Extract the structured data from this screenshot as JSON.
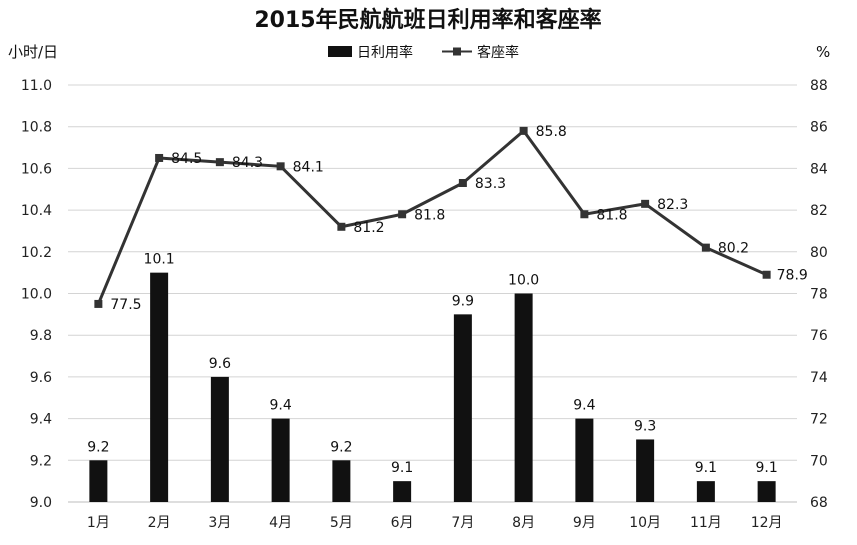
{
  "chart_data": {
    "type": "bar",
    "title": "2015年民航航班日利用率和客座率",
    "categories": [
      "1月",
      "2月",
      "3月",
      "4月",
      "5月",
      "6月",
      "7月",
      "8月",
      "9月",
      "10月",
      "11月",
      "12月"
    ],
    "series": [
      {
        "name": "日利用率",
        "type": "bar",
        "axis": "left",
        "values": [
          9.2,
          10.1,
          9.6,
          9.4,
          9.2,
          9.1,
          9.9,
          10.0,
          9.4,
          9.3,
          9.1,
          9.1
        ],
        "labels": [
          "9.2",
          "10.1",
          "9.6",
          "9.4",
          "9.2",
          "9.1",
          "9.9",
          "10.0",
          "9.4",
          "9.3",
          "9.1",
          "9.1"
        ],
        "color": "#111111"
      },
      {
        "name": "客座率",
        "type": "line",
        "axis": "right",
        "values": [
          77.5,
          84.5,
          84.3,
          84.1,
          81.2,
          81.8,
          83.3,
          85.8,
          81.8,
          82.3,
          80.2,
          78.9
        ],
        "labels": [
          "77.5",
          "84.5",
          "84.3",
          "84.1",
          "81.2",
          "81.8",
          "83.3",
          "85.8",
          "81.8",
          "82.3",
          "80.2",
          "78.9"
        ],
        "color": "#333333"
      }
    ],
    "y_left": {
      "unit": "小时/日",
      "min": 9.0,
      "max": 11.0,
      "ticks": [
        "9.0",
        "9.2",
        "9.4",
        "9.6",
        "9.8",
        "10.0",
        "10.2",
        "10.4",
        "10.6",
        "10.8",
        "11.0"
      ]
    },
    "y_right": {
      "unit": "%",
      "min": 68,
      "max": 88,
      "ticks": [
        "68",
        "70",
        "72",
        "74",
        "76",
        "78",
        "80",
        "82",
        "84",
        "86",
        "88"
      ]
    },
    "grid": true,
    "legend_position": "top-center"
  }
}
